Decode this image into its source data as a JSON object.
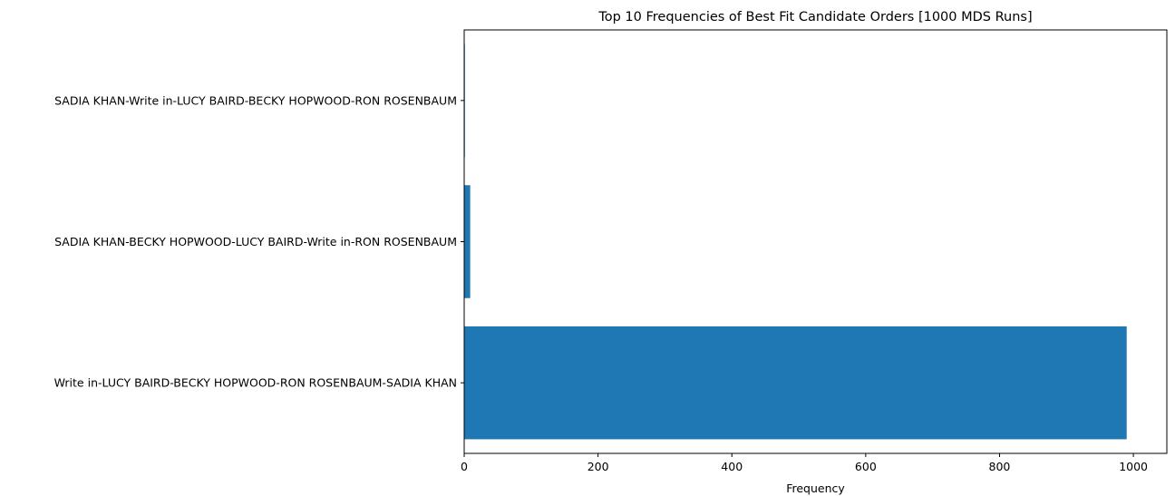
{
  "chart_data": {
    "type": "bar",
    "orientation": "horizontal",
    "title": "Top 10 Frequencies of Best Fit Candidate Orders [1000 MDS Runs]",
    "xlabel": "Frequency",
    "ylabel": "",
    "categories": [
      "Write in-LUCY BAIRD-BECKY HOPWOOD-RON ROSENBAUM-SADIA KHAN",
      "SADIA KHAN-BECKY HOPWOOD-LUCY BAIRD-Write in-RON ROSENBAUM",
      "SADIA KHAN-Write in-LUCY BAIRD-BECKY HOPWOOD-RON ROSENBAUM"
    ],
    "values": [
      990,
      9,
      1
    ],
    "xlim": [
      0,
      1050
    ],
    "xticks": [
      0,
      200,
      400,
      600,
      800,
      1000
    ],
    "grid": false,
    "legend": "none",
    "bar_color": "#1f77b4"
  }
}
